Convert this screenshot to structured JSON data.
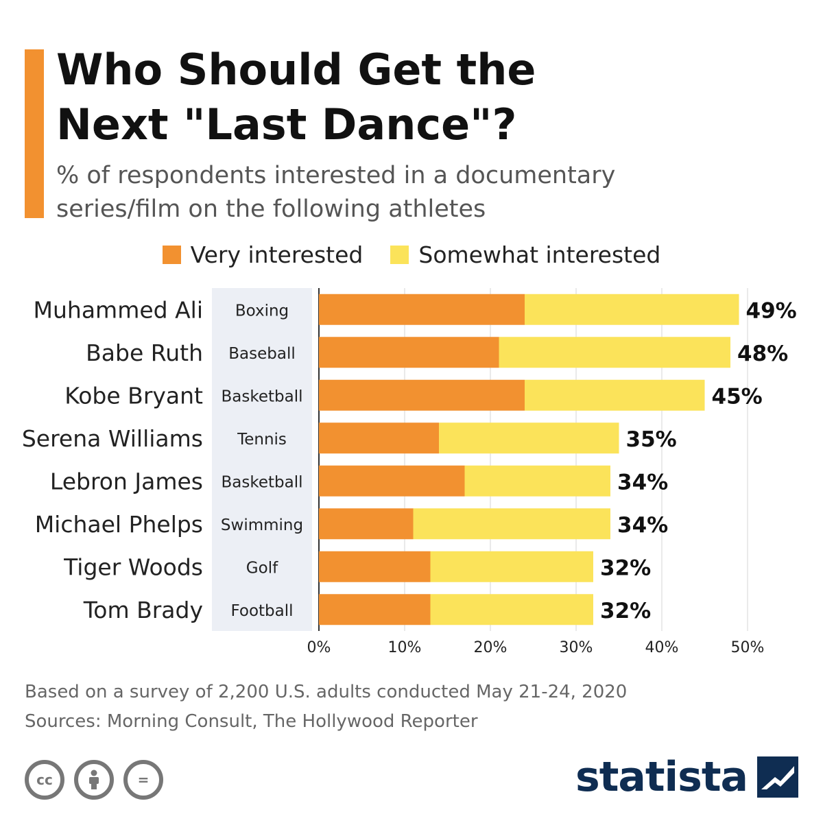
{
  "header": {
    "title_line1": "Who Should Get the",
    "title_line2": "Next \"Last Dance\"?",
    "subtitle_line1": "% of respondents interested in a documentary",
    "subtitle_line2": "series/film on the following athletes",
    "accent_color": "#f29130"
  },
  "legend": {
    "very_label": "Very interested",
    "somewhat_label": "Somewhat interested"
  },
  "chart_data": {
    "type": "bar",
    "orientation": "horizontal",
    "stacked": true,
    "categories": [
      "Muhammed Ali",
      "Babe Ruth",
      "Kobe Bryant",
      "Serena Williams",
      "Lebron James",
      "Michael Phelps",
      "Tiger Woods",
      "Tom Brady"
    ],
    "sports": [
      "Boxing",
      "Baseball",
      "Basketball",
      "Tennis",
      "Basketball",
      "Swimming",
      "Golf",
      "Football"
    ],
    "series": [
      {
        "name": "Very interested",
        "color": "#f29130",
        "values": [
          24,
          21,
          24,
          14,
          17,
          11,
          13,
          13
        ]
      },
      {
        "name": "Somewhat interested",
        "color": "#fbe35a",
        "values": [
          25,
          27,
          21,
          21,
          17,
          23,
          19,
          19
        ]
      }
    ],
    "total_labels": [
      "49%",
      "48%",
      "45%",
      "35%",
      "34%",
      "34%",
      "32%",
      "32%"
    ],
    "x_ticks": [
      0,
      10,
      20,
      30,
      40,
      50
    ],
    "x_tick_labels": [
      "0%",
      "10%",
      "20%",
      "30%",
      "40%",
      "50%"
    ],
    "xlim": [
      0,
      50
    ],
    "grid": true,
    "legend_position": "top-center"
  },
  "footer": {
    "note": "Based on a survey of 2,200 U.S. adults conducted May 21-24, 2020",
    "sources": "Sources: Morning Consult, The Hollywood Reporter",
    "brand": "statista",
    "cc_label": "cc",
    "eq_label": "="
  }
}
